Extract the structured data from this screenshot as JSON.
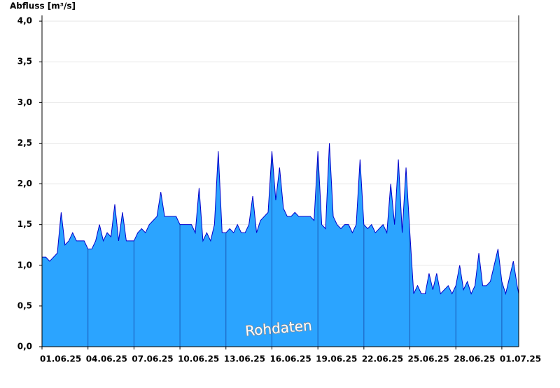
{
  "chart_data": {
    "type": "area",
    "y_label": "Abfluss [m³/s]",
    "annotation": "Rohdaten",
    "color": "#2ba4ff",
    "line_color": "#0000cc",
    "grid": true,
    "xlim": [
      0,
      31.1
    ],
    "ylim": [
      0,
      4.07
    ],
    "xticks": [
      {
        "value": 0,
        "label": "01.06.25"
      },
      {
        "value": 3,
        "label": "04.06.25"
      },
      {
        "value": 6,
        "label": "07.06.25"
      },
      {
        "value": 9,
        "label": "10.06.25"
      },
      {
        "value": 12,
        "label": "13.06.25"
      },
      {
        "value": 15,
        "label": "16.06.25"
      },
      {
        "value": 18,
        "label": "19.06.25"
      },
      {
        "value": 21,
        "label": "22.06.25"
      },
      {
        "value": 24,
        "label": "25.06.25"
      },
      {
        "value": 27,
        "label": "28.06.25"
      },
      {
        "value": 30,
        "label": "01.07.25"
      }
    ],
    "yticks": [
      {
        "value": 0,
        "label": "0,0"
      },
      {
        "value": 0.5,
        "label": "0,5"
      },
      {
        "value": 1,
        "label": "1,0"
      },
      {
        "value": 1.5,
        "label": "1,5"
      },
      {
        "value": 2,
        "label": "2,0"
      },
      {
        "value": 2.5,
        "label": "2,5"
      },
      {
        "value": 3,
        "label": "3,0"
      },
      {
        "value": 3.5,
        "label": "3,5"
      },
      {
        "value": 4,
        "label": "4,0"
      }
    ],
    "x": [
      0,
      0.25,
      0.5,
      0.75,
      1,
      1.25,
      1.5,
      1.75,
      2,
      2.25,
      2.5,
      2.75,
      3,
      3.25,
      3.5,
      3.75,
      4,
      4.25,
      4.5,
      4.75,
      5,
      5.25,
      5.5,
      5.75,
      6,
      6.25,
      6.5,
      6.75,
      7,
      7.25,
      7.5,
      7.75,
      8,
      8.25,
      8.5,
      8.75,
      9,
      9.25,
      9.5,
      9.75,
      10,
      10.25,
      10.5,
      10.75,
      11,
      11.25,
      11.5,
      11.75,
      12,
      12.25,
      12.5,
      12.75,
      13,
      13.25,
      13.5,
      13.75,
      14,
      14.25,
      14.5,
      14.75,
      15,
      15.25,
      15.5,
      15.75,
      16,
      16.25,
      16.5,
      16.75,
      17,
      17.25,
      17.5,
      17.75,
      18,
      18.25,
      18.5,
      18.75,
      19,
      19.25,
      19.5,
      19.75,
      20,
      20.25,
      20.5,
      20.75,
      21,
      21.25,
      21.5,
      21.75,
      22,
      22.25,
      22.5,
      22.75,
      23,
      23.25,
      23.5,
      23.75,
      24,
      24.25,
      24.5,
      24.75,
      25,
      25.25,
      25.5,
      25.75,
      26,
      26.25,
      26.5,
      26.75,
      27,
      27.25,
      27.5,
      27.75,
      28,
      28.25,
      28.5,
      28.75,
      29,
      29.25,
      29.5,
      29.75,
      30,
      30.25,
      30.5,
      30.75,
      31,
      31.1
    ],
    "values": [
      1.1,
      1.1,
      1.05,
      1.1,
      1.15,
      1.65,
      1.25,
      1.3,
      1.4,
      1.3,
      1.3,
      1.3,
      1.2,
      1.2,
      1.3,
      1.5,
      1.3,
      1.4,
      1.35,
      1.75,
      1.3,
      1.65,
      1.3,
      1.3,
      1.3,
      1.4,
      1.45,
      1.4,
      1.5,
      1.55,
      1.6,
      1.9,
      1.6,
      1.6,
      1.6,
      1.6,
      1.5,
      1.5,
      1.5,
      1.5,
      1.4,
      1.95,
      1.3,
      1.4,
      1.3,
      1.5,
      2.4,
      1.4,
      1.4,
      1.45,
      1.4,
      1.5,
      1.4,
      1.4,
      1.5,
      1.85,
      1.4,
      1.55,
      1.6,
      1.65,
      2.4,
      1.8,
      2.2,
      1.7,
      1.6,
      1.6,
      1.65,
      1.6,
      1.6,
      1.6,
      1.6,
      1.55,
      2.4,
      1.5,
      1.45,
      2.5,
      1.6,
      1.5,
      1.45,
      1.5,
      1.5,
      1.4,
      1.5,
      2.3,
      1.5,
      1.45,
      1.5,
      1.4,
      1.45,
      1.5,
      1.4,
      2.0,
      1.5,
      2.3,
      1.4,
      2.2,
      1.4,
      0.65,
      0.75,
      0.65,
      0.65,
      0.9,
      0.7,
      0.9,
      0.65,
      0.7,
      0.75,
      0.65,
      0.75,
      1.0,
      0.7,
      0.8,
      0.65,
      0.75,
      1.15,
      0.75,
      0.75,
      0.8,
      1.0,
      1.2,
      0.8,
      0.65,
      0.85,
      1.05,
      0.75,
      0.65
    ]
  }
}
